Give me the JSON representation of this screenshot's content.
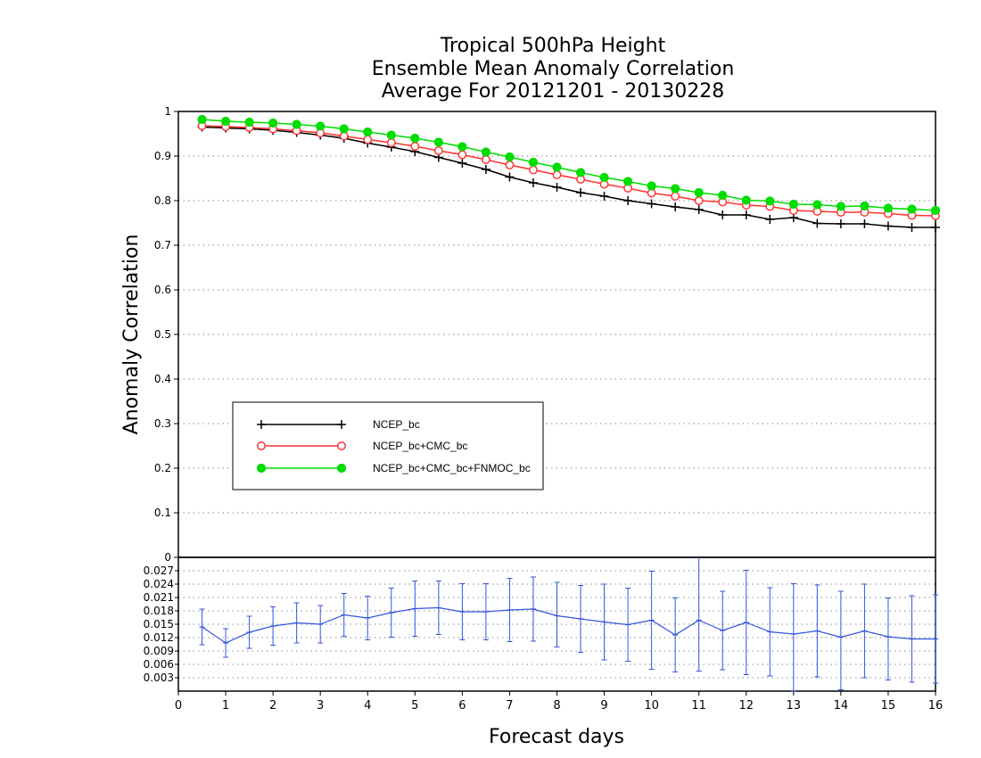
{
  "chart_data": [
    {
      "type": "line",
      "title": [
        "Tropical 500hPa Height",
        "Ensemble Mean Anomaly Correlation",
        "Average For 20121201 - 20130228"
      ],
      "ylabel": "Anomaly Correlation",
      "ylim": [
        0,
        1
      ],
      "yticks": [
        "0",
        "0.1",
        "0.2",
        "0.3",
        "0.4",
        "0.5",
        "0.6",
        "0.7",
        "0.8",
        "0.9",
        "1"
      ],
      "grid": "horizontal dotted",
      "legend_position": "lower-left",
      "x": [
        0.5,
        1,
        1.5,
        2,
        2.5,
        3,
        3.5,
        4,
        4.5,
        5,
        5.5,
        6,
        6.5,
        7,
        7.5,
        8,
        8.5,
        9,
        9.5,
        10,
        10.5,
        11,
        11.5,
        12,
        12.5,
        13,
        13.5,
        14,
        14.5,
        15,
        15.5,
        16
      ],
      "series": [
        {
          "name": "NCEP_bc",
          "color": "#000000",
          "marker": "plus",
          "values": [
            0.965,
            0.963,
            0.961,
            0.958,
            0.953,
            0.947,
            0.94,
            0.929,
            0.92,
            0.91,
            0.897,
            0.884,
            0.87,
            0.853,
            0.84,
            0.83,
            0.818,
            0.81,
            0.8,
            0.793,
            0.786,
            0.78,
            0.768,
            0.768,
            0.758,
            0.762,
            0.749,
            0.748,
            0.748,
            0.743,
            0.74,
            0.74
          ]
        },
        {
          "name": "NCEP_bc+CMC_bc",
          "color": "#ff3333",
          "marker": "open-circle",
          "values": [
            0.968,
            0.966,
            0.964,
            0.961,
            0.957,
            0.952,
            0.945,
            0.937,
            0.93,
            0.922,
            0.912,
            0.903,
            0.892,
            0.88,
            0.869,
            0.858,
            0.848,
            0.837,
            0.828,
            0.817,
            0.81,
            0.8,
            0.797,
            0.79,
            0.787,
            0.778,
            0.776,
            0.774,
            0.774,
            0.771,
            0.767,
            0.766
          ]
        },
        {
          "name": "NCEP_bc+CMC_bc+FNMOC_bc",
          "color": "#00dd00",
          "marker": "filled-circle",
          "values": [
            0.982,
            0.978,
            0.976,
            0.974,
            0.971,
            0.967,
            0.961,
            0.954,
            0.947,
            0.94,
            0.931,
            0.921,
            0.909,
            0.898,
            0.886,
            0.875,
            0.863,
            0.852,
            0.843,
            0.833,
            0.827,
            0.818,
            0.812,
            0.801,
            0.799,
            0.792,
            0.791,
            0.787,
            0.788,
            0.783,
            0.781,
            0.778
          ]
        }
      ]
    },
    {
      "type": "line",
      "ylim": [
        0,
        0.03
      ],
      "yticks": [
        "0.003",
        "0.006",
        "0.009",
        "0.012",
        "0.015",
        "0.018",
        "0.021",
        "0.024",
        "0.027"
      ],
      "xlabel": "Forecast days",
      "xlim": [
        0,
        16
      ],
      "xticks": [
        "0",
        "1",
        "2",
        "3",
        "4",
        "5",
        "6",
        "7",
        "8",
        "9",
        "10",
        "11",
        "12",
        "13",
        "14",
        "15",
        "16"
      ],
      "color": "#3355dd",
      "x": [
        0.5,
        1,
        1.5,
        2,
        2.5,
        3,
        3.5,
        4,
        4.5,
        5,
        5.5,
        6,
        6.5,
        7,
        7.5,
        8,
        8.5,
        9,
        9.5,
        10,
        10.5,
        11,
        11.5,
        12,
        12.5,
        13,
        13.5,
        14,
        14.5,
        15,
        15.5,
        16
      ],
      "values": [
        0.0144,
        0.0108,
        0.0132,
        0.0146,
        0.0153,
        0.015,
        0.0171,
        0.0164,
        0.0176,
        0.0185,
        0.0187,
        0.0178,
        0.0178,
        0.0182,
        0.0184,
        0.0169,
        0.0162,
        0.0155,
        0.0149,
        0.0159,
        0.0126,
        0.0159,
        0.0136,
        0.0154,
        0.0133,
        0.0128,
        0.0135,
        0.0121,
        0.0135,
        0.0122,
        0.0117,
        0.0117
      ],
      "error_low": [
        0.0104,
        0.0076,
        0.0096,
        0.0103,
        0.0108,
        0.0108,
        0.0123,
        0.0115,
        0.0121,
        0.0123,
        0.0127,
        0.0115,
        0.0115,
        0.0111,
        0.0112,
        0.0099,
        0.0087,
        0.007,
        0.0067,
        0.0049,
        0.0043,
        0.0045,
        0.0048,
        0.0037,
        0.0034,
        0.0,
        0.0032,
        0.0003,
        0.003,
        0.0025,
        0.002,
        0.0018
      ],
      "error_high": [
        0.0184,
        0.014,
        0.0168,
        0.0189,
        0.0198,
        0.0192,
        0.0219,
        0.0213,
        0.0231,
        0.0247,
        0.0247,
        0.0241,
        0.0241,
        0.0253,
        0.0256,
        0.0244,
        0.0237,
        0.024,
        0.0231,
        0.0269,
        0.0209,
        0.0303,
        0.0224,
        0.0271,
        0.0232,
        0.0241,
        0.0238,
        0.0224,
        0.024,
        0.0209,
        0.0214,
        0.0216
      ]
    }
  ]
}
